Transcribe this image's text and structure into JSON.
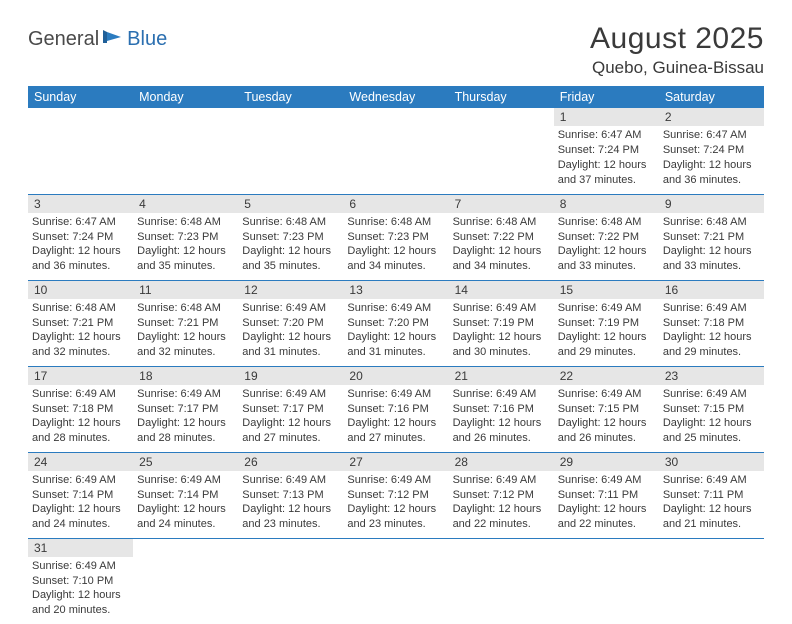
{
  "logo": {
    "part1": "General",
    "part2": "Blue"
  },
  "title": {
    "month_year": "August 2025",
    "location": "Quebo, Guinea-Bissau"
  },
  "colors": {
    "header_bg": "#2b7bbf",
    "header_text": "#ffffff",
    "daynum_bg": "#e6e6e6",
    "border": "#2b7bbf",
    "text": "#3a3a3a",
    "logo_blue": "#2b6fb0"
  },
  "weekdays": [
    "Sunday",
    "Monday",
    "Tuesday",
    "Wednesday",
    "Thursday",
    "Friday",
    "Saturday"
  ],
  "weeks": [
    [
      null,
      null,
      null,
      null,
      null,
      {
        "n": "1",
        "sunrise": "Sunrise: 6:47 AM",
        "sunset": "Sunset: 7:24 PM",
        "day1": "Daylight: 12 hours",
        "day2": "and 37 minutes."
      },
      {
        "n": "2",
        "sunrise": "Sunrise: 6:47 AM",
        "sunset": "Sunset: 7:24 PM",
        "day1": "Daylight: 12 hours",
        "day2": "and 36 minutes."
      }
    ],
    [
      {
        "n": "3",
        "sunrise": "Sunrise: 6:47 AM",
        "sunset": "Sunset: 7:24 PM",
        "day1": "Daylight: 12 hours",
        "day2": "and 36 minutes."
      },
      {
        "n": "4",
        "sunrise": "Sunrise: 6:48 AM",
        "sunset": "Sunset: 7:23 PM",
        "day1": "Daylight: 12 hours",
        "day2": "and 35 minutes."
      },
      {
        "n": "5",
        "sunrise": "Sunrise: 6:48 AM",
        "sunset": "Sunset: 7:23 PM",
        "day1": "Daylight: 12 hours",
        "day2": "and 35 minutes."
      },
      {
        "n": "6",
        "sunrise": "Sunrise: 6:48 AM",
        "sunset": "Sunset: 7:23 PM",
        "day1": "Daylight: 12 hours",
        "day2": "and 34 minutes."
      },
      {
        "n": "7",
        "sunrise": "Sunrise: 6:48 AM",
        "sunset": "Sunset: 7:22 PM",
        "day1": "Daylight: 12 hours",
        "day2": "and 34 minutes."
      },
      {
        "n": "8",
        "sunrise": "Sunrise: 6:48 AM",
        "sunset": "Sunset: 7:22 PM",
        "day1": "Daylight: 12 hours",
        "day2": "and 33 minutes."
      },
      {
        "n": "9",
        "sunrise": "Sunrise: 6:48 AM",
        "sunset": "Sunset: 7:21 PM",
        "day1": "Daylight: 12 hours",
        "day2": "and 33 minutes."
      }
    ],
    [
      {
        "n": "10",
        "sunrise": "Sunrise: 6:48 AM",
        "sunset": "Sunset: 7:21 PM",
        "day1": "Daylight: 12 hours",
        "day2": "and 32 minutes."
      },
      {
        "n": "11",
        "sunrise": "Sunrise: 6:48 AM",
        "sunset": "Sunset: 7:21 PM",
        "day1": "Daylight: 12 hours",
        "day2": "and 32 minutes."
      },
      {
        "n": "12",
        "sunrise": "Sunrise: 6:49 AM",
        "sunset": "Sunset: 7:20 PM",
        "day1": "Daylight: 12 hours",
        "day2": "and 31 minutes."
      },
      {
        "n": "13",
        "sunrise": "Sunrise: 6:49 AM",
        "sunset": "Sunset: 7:20 PM",
        "day1": "Daylight: 12 hours",
        "day2": "and 31 minutes."
      },
      {
        "n": "14",
        "sunrise": "Sunrise: 6:49 AM",
        "sunset": "Sunset: 7:19 PM",
        "day1": "Daylight: 12 hours",
        "day2": "and 30 minutes."
      },
      {
        "n": "15",
        "sunrise": "Sunrise: 6:49 AM",
        "sunset": "Sunset: 7:19 PM",
        "day1": "Daylight: 12 hours",
        "day2": "and 29 minutes."
      },
      {
        "n": "16",
        "sunrise": "Sunrise: 6:49 AM",
        "sunset": "Sunset: 7:18 PM",
        "day1": "Daylight: 12 hours",
        "day2": "and 29 minutes."
      }
    ],
    [
      {
        "n": "17",
        "sunrise": "Sunrise: 6:49 AM",
        "sunset": "Sunset: 7:18 PM",
        "day1": "Daylight: 12 hours",
        "day2": "and 28 minutes."
      },
      {
        "n": "18",
        "sunrise": "Sunrise: 6:49 AM",
        "sunset": "Sunset: 7:17 PM",
        "day1": "Daylight: 12 hours",
        "day2": "and 28 minutes."
      },
      {
        "n": "19",
        "sunrise": "Sunrise: 6:49 AM",
        "sunset": "Sunset: 7:17 PM",
        "day1": "Daylight: 12 hours",
        "day2": "and 27 minutes."
      },
      {
        "n": "20",
        "sunrise": "Sunrise: 6:49 AM",
        "sunset": "Sunset: 7:16 PM",
        "day1": "Daylight: 12 hours",
        "day2": "and 27 minutes."
      },
      {
        "n": "21",
        "sunrise": "Sunrise: 6:49 AM",
        "sunset": "Sunset: 7:16 PM",
        "day1": "Daylight: 12 hours",
        "day2": "and 26 minutes."
      },
      {
        "n": "22",
        "sunrise": "Sunrise: 6:49 AM",
        "sunset": "Sunset: 7:15 PM",
        "day1": "Daylight: 12 hours",
        "day2": "and 26 minutes."
      },
      {
        "n": "23",
        "sunrise": "Sunrise: 6:49 AM",
        "sunset": "Sunset: 7:15 PM",
        "day1": "Daylight: 12 hours",
        "day2": "and 25 minutes."
      }
    ],
    [
      {
        "n": "24",
        "sunrise": "Sunrise: 6:49 AM",
        "sunset": "Sunset: 7:14 PM",
        "day1": "Daylight: 12 hours",
        "day2": "and 24 minutes."
      },
      {
        "n": "25",
        "sunrise": "Sunrise: 6:49 AM",
        "sunset": "Sunset: 7:14 PM",
        "day1": "Daylight: 12 hours",
        "day2": "and 24 minutes."
      },
      {
        "n": "26",
        "sunrise": "Sunrise: 6:49 AM",
        "sunset": "Sunset: 7:13 PM",
        "day1": "Daylight: 12 hours",
        "day2": "and 23 minutes."
      },
      {
        "n": "27",
        "sunrise": "Sunrise: 6:49 AM",
        "sunset": "Sunset: 7:12 PM",
        "day1": "Daylight: 12 hours",
        "day2": "and 23 minutes."
      },
      {
        "n": "28",
        "sunrise": "Sunrise: 6:49 AM",
        "sunset": "Sunset: 7:12 PM",
        "day1": "Daylight: 12 hours",
        "day2": "and 22 minutes."
      },
      {
        "n": "29",
        "sunrise": "Sunrise: 6:49 AM",
        "sunset": "Sunset: 7:11 PM",
        "day1": "Daylight: 12 hours",
        "day2": "and 22 minutes."
      },
      {
        "n": "30",
        "sunrise": "Sunrise: 6:49 AM",
        "sunset": "Sunset: 7:11 PM",
        "day1": "Daylight: 12 hours",
        "day2": "and 21 minutes."
      }
    ],
    [
      {
        "n": "31",
        "sunrise": "Sunrise: 6:49 AM",
        "sunset": "Sunset: 7:10 PM",
        "day1": "Daylight: 12 hours",
        "day2": "and 20 minutes."
      },
      null,
      null,
      null,
      null,
      null,
      null
    ]
  ]
}
